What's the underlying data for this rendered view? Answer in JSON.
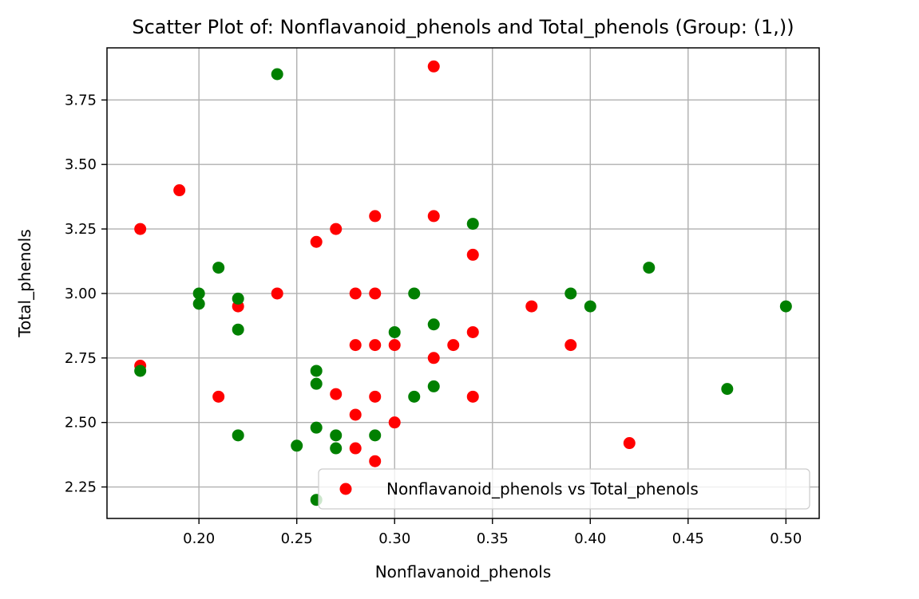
{
  "chart_data": {
    "type": "scatter",
    "title": "Scatter Plot of: Nonflavanoid_phenols and Total_phenols (Group: (1,))",
    "xlabel": "Nonflavanoid_phenols",
    "ylabel": "Total_phenols",
    "xlim": [
      0.153,
      0.517
    ],
    "ylim": [
      2.128,
      3.952
    ],
    "x_ticks": [
      "0.20",
      "0.25",
      "0.30",
      "0.35",
      "0.40",
      "0.45",
      "0.50"
    ],
    "y_ticks": [
      "2.25",
      "2.50",
      "2.75",
      "3.00",
      "3.25",
      "3.50",
      "3.75"
    ],
    "grid": true,
    "legend": {
      "position": "lower-right",
      "entries": [
        "Nonflavanoid_phenols vs Total_phenols"
      ]
    },
    "series": [
      {
        "color": "#ff0000",
        "points": [
          [
            0.32,
            3.88
          ],
          [
            0.19,
            3.4
          ],
          [
            0.17,
            3.25
          ],
          [
            0.29,
            3.3
          ],
          [
            0.32,
            3.3
          ],
          [
            0.27,
            3.25
          ],
          [
            0.26,
            3.2
          ],
          [
            0.34,
            3.15
          ],
          [
            0.24,
            3.0
          ],
          [
            0.28,
            3.0
          ],
          [
            0.29,
            3.0
          ],
          [
            0.22,
            2.95
          ],
          [
            0.37,
            2.95
          ],
          [
            0.34,
            2.85
          ],
          [
            0.28,
            2.8
          ],
          [
            0.29,
            2.8
          ],
          [
            0.3,
            2.8
          ],
          [
            0.33,
            2.8
          ],
          [
            0.39,
            2.8
          ],
          [
            0.32,
            2.75
          ],
          [
            0.17,
            2.72
          ],
          [
            0.21,
            2.6
          ],
          [
            0.27,
            2.61
          ],
          [
            0.29,
            2.6
          ],
          [
            0.34,
            2.6
          ],
          [
            0.28,
            2.53
          ],
          [
            0.3,
            2.5
          ],
          [
            0.42,
            2.42
          ],
          [
            0.28,
            2.4
          ],
          [
            0.29,
            2.35
          ]
        ]
      },
      {
        "color": "#008000",
        "points": [
          [
            0.24,
            3.85
          ],
          [
            0.34,
            3.27
          ],
          [
            0.21,
            3.1
          ],
          [
            0.43,
            3.1
          ],
          [
            0.2,
            3.0
          ],
          [
            0.31,
            3.0
          ],
          [
            0.39,
            3.0
          ],
          [
            0.22,
            2.98
          ],
          [
            0.2,
            2.96
          ],
          [
            0.4,
            2.95
          ],
          [
            0.5,
            2.95
          ],
          [
            0.32,
            2.88
          ],
          [
            0.22,
            2.86
          ],
          [
            0.3,
            2.85
          ],
          [
            0.17,
            2.7
          ],
          [
            0.26,
            2.7
          ],
          [
            0.26,
            2.65
          ],
          [
            0.32,
            2.64
          ],
          [
            0.47,
            2.63
          ],
          [
            0.31,
            2.6
          ],
          [
            0.26,
            2.48
          ],
          [
            0.22,
            2.45
          ],
          [
            0.27,
            2.45
          ],
          [
            0.29,
            2.45
          ],
          [
            0.25,
            2.41
          ],
          [
            0.27,
            2.4
          ],
          [
            0.26,
            2.2
          ]
        ]
      }
    ]
  }
}
